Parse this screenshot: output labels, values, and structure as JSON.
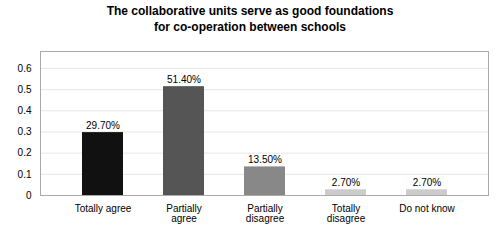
{
  "chart_data": {
    "type": "bar",
    "title": "The collaborative units serve as good foundations\nfor co-operation between schools",
    "categories": [
      "Totally agree",
      "Partially\nagree",
      "Partially\ndisagree",
      "Totally\ndisagree",
      "Do not know"
    ],
    "values": [
      0.297,
      0.514,
      0.135,
      0.027,
      0.027
    ],
    "value_labels": [
      "29.70%",
      "51.40%",
      "13.50%",
      "2.70%",
      "2.70%"
    ],
    "data_labels": true,
    "colors": [
      "#111111",
      "#555555",
      "#888888",
      "#cccccc",
      "#cccccc"
    ],
    "ylim": [
      0,
      0.68
    ],
    "yticks": [
      0,
      0.1,
      0.2,
      0.3,
      0.4,
      0.5,
      0.6
    ],
    "grid": true
  }
}
